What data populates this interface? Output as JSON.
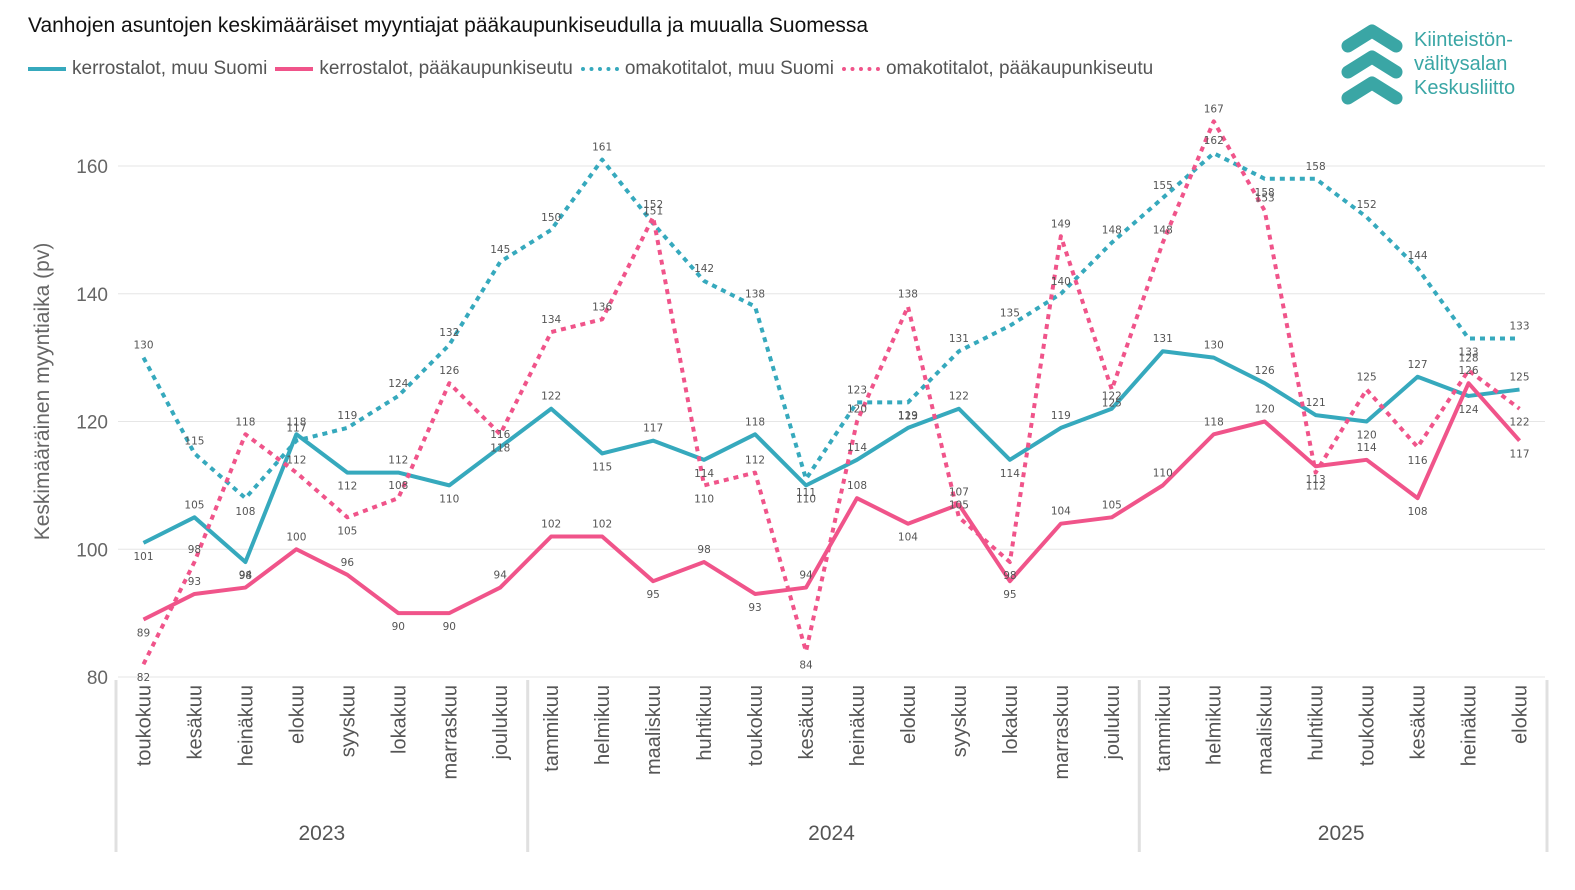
{
  "chart_data": {
    "type": "line",
    "title": "Vanhojen asuntojen keskimääräiset myyntiajat pääkaupunkiseudulla ja muualla Suomessa",
    "xlabel": "",
    "ylabel": "Keskimääräinen myyntiaika (pv)",
    "ylim": [
      80,
      170
    ],
    "yticks": [
      80,
      100,
      120,
      140,
      160
    ],
    "grid": true,
    "legend_position": "top-left",
    "years": [
      {
        "label": "2023",
        "count": 8
      },
      {
        "label": "2024",
        "count": 12
      },
      {
        "label": "2025",
        "count": 8
      }
    ],
    "categories": [
      "toukokuu",
      "kesäkuu",
      "heinäkuu",
      "elokuu",
      "syyskuu",
      "lokakuu",
      "marraskuu",
      "joulukuu",
      "tammikuu",
      "helmikuu",
      "maaliskuu",
      "huhtikuu",
      "toukokuu",
      "kesäkuu",
      "heinäkuu",
      "elokuu",
      "syyskuu",
      "lokakuu",
      "marraskuu",
      "joulukuu",
      "tammikuu",
      "helmikuu",
      "maaliskuu",
      "huhtikuu",
      "toukokuu",
      "kesäkuu",
      "heinäkuu",
      "elokuu"
    ],
    "series": [
      {
        "name": "kerrostalot, muu Suomi",
        "color": "#36a9bd",
        "style": "solid",
        "values": [
          101,
          105,
          98,
          118,
          112,
          112,
          110,
          116,
          122,
          115,
          117,
          114,
          118,
          110,
          114,
          119,
          122,
          114,
          119,
          122,
          131,
          130,
          126,
          121,
          120,
          127,
          124,
          125
        ]
      },
      {
        "name": "kerrostalot, pääkaupunkiseutu",
        "color": "#f0548a",
        "style": "solid",
        "values": [
          89,
          93,
          94,
          100,
          96,
          90,
          90,
          94,
          102,
          102,
          95,
          98,
          93,
          94,
          108,
          104,
          107,
          95,
          104,
          105,
          110,
          118,
          120,
          113,
          114,
          108,
          126,
          117
        ]
      },
      {
        "name": "omakotitalot, muu Suomi",
        "color": "#36a9bd",
        "style": "dashed",
        "values": [
          130,
          115,
          108,
          117,
          119,
          124,
          132,
          145,
          150,
          161,
          151,
          142,
          138,
          111,
          123,
          123,
          131,
          135,
          140,
          148,
          155,
          162,
          158,
          158,
          152,
          144,
          133,
          133
        ]
      },
      {
        "name": "omakotitalot, pääkaupunkiseutu",
        "color": "#f0548a",
        "style": "dashed",
        "values": [
          82,
          98,
          118,
          112,
          105,
          108,
          126,
          118,
          134,
          136,
          152,
          110,
          112,
          84,
          120,
          138,
          105,
          98,
          149,
          125,
          148,
          167,
          153,
          112,
          125,
          116,
          128,
          122
        ]
      }
    ]
  },
  "logo": {
    "lines": [
      "Kiinteistön-",
      "välitysalan",
      "Keskusliitto"
    ],
    "color": "#3aa6a5"
  }
}
